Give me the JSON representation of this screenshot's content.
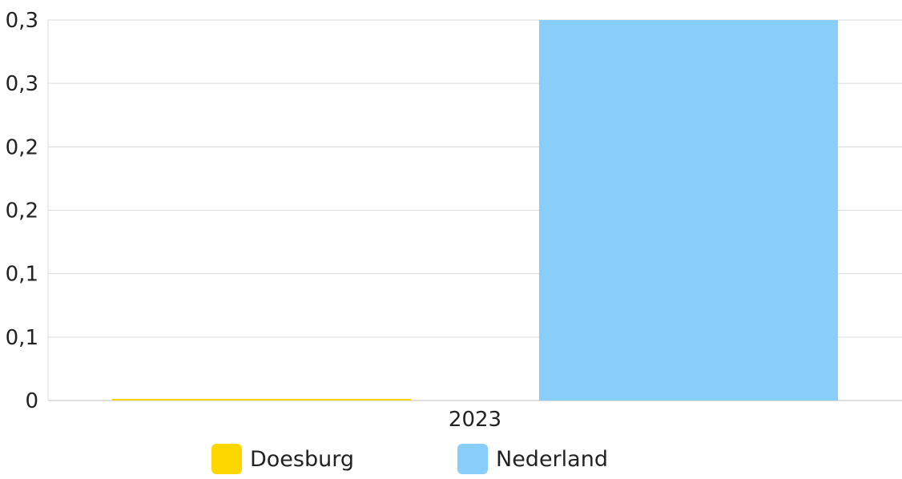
{
  "chart_data": {
    "type": "bar",
    "categories": [
      "2023"
    ],
    "series": [
      {
        "name": "Doesburg",
        "values": [
          0
        ],
        "color": "#FFD700"
      },
      {
        "name": "Nederland",
        "values": [
          0.3
        ],
        "color": "#87CEFA"
      }
    ],
    "y_ticks": [
      {
        "value": 0,
        "label": "0"
      },
      {
        "value": 0.05,
        "label": "0,1"
      },
      {
        "value": 0.1,
        "label": "0,1"
      },
      {
        "value": 0.15,
        "label": "0,2"
      },
      {
        "value": 0.2,
        "label": "0,2"
      },
      {
        "value": 0.25,
        "label": "0,3"
      },
      {
        "value": 0.3,
        "label": "0,3"
      }
    ],
    "ylim": [
      0,
      0.3
    ],
    "grid": true,
    "legend_position": "bottom"
  }
}
